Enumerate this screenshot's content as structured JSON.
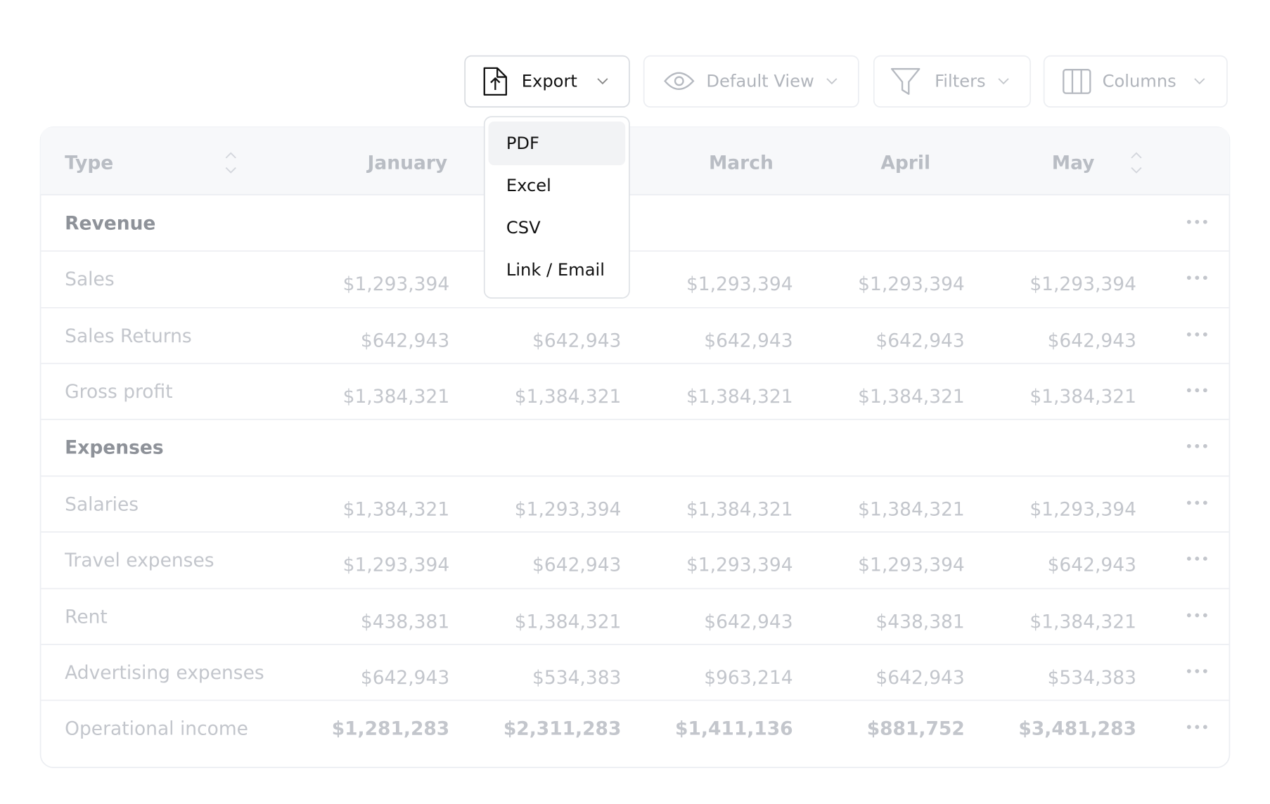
{
  "toolbar": {
    "export": "Export",
    "view": "Default View",
    "filters": "Filters",
    "columns": "Columns"
  },
  "export_menu": [
    "PDF",
    "Excel",
    "CSV",
    "Link / Email"
  ],
  "table": {
    "headers": [
      "Type",
      "January",
      null,
      "March",
      "April",
      "May"
    ],
    "rows": [
      {
        "kind": "section",
        "cells": [
          "Revenue"
        ]
      },
      {
        "kind": "item",
        "cells": [
          "Sales",
          "$1,293,394",
          null,
          "$1,293,394",
          "$1,293,394",
          "$1,293,394"
        ]
      },
      {
        "kind": "item",
        "cells": [
          "Sales Returns",
          "$642,943",
          "$642,943",
          "$642,943",
          "$642,943",
          "$642,943"
        ]
      },
      {
        "kind": "item",
        "cells": [
          "Gross profit",
          "$1,384,321",
          "$1,384,321",
          "$1,384,321",
          "$1,384,321",
          "$1,384,321"
        ]
      },
      {
        "kind": "section",
        "cells": [
          "Expenses"
        ]
      },
      {
        "kind": "item",
        "cells": [
          "Salaries",
          "$1,384,321",
          "$1,293,394",
          "$1,384,321",
          "$1,384,321",
          "$1,293,394"
        ]
      },
      {
        "kind": "item",
        "cells": [
          "Travel expenses",
          "$1,293,394",
          "$642,943",
          "$1,293,394",
          "$1,293,394",
          "$642,943"
        ]
      },
      {
        "kind": "item",
        "cells": [
          "Rent",
          "$438,381",
          "$1,384,321",
          "$642,943",
          "$438,381",
          "$1,384,321"
        ]
      },
      {
        "kind": "item",
        "cells": [
          "Advertising expenses",
          "$642,943",
          "$534,383",
          "$963,214",
          "$642,943",
          "$534,383"
        ]
      },
      {
        "kind": "total",
        "cells": [
          "Operational income",
          "$1,281,283",
          "$2,311,283",
          "$1,411,136",
          "$881,752",
          "$3,481,283"
        ]
      }
    ]
  }
}
